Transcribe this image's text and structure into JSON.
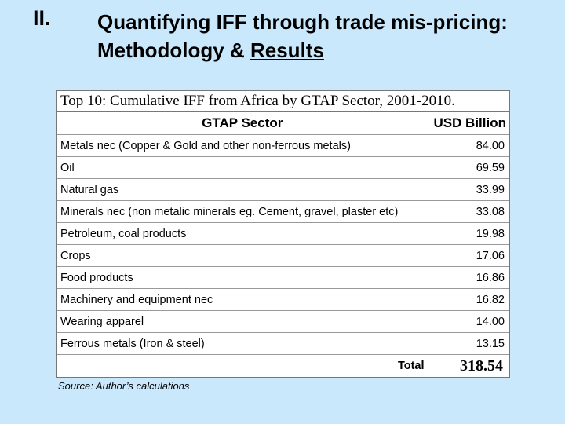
{
  "section_numeral": "II.",
  "title": {
    "main": "Quantifying IFF through trade mis-pricing: Methodology & ",
    "underlined": "Results"
  },
  "table": {
    "caption": "Top 10: Cumulative IFF from Africa by GTAP Sector, 2001-2010.",
    "col_sector": "GTAP Sector",
    "col_usd": "USD Billion",
    "rows": [
      {
        "sector": "Metals nec (Copper & Gold and other non-ferrous metals)",
        "value": "84.00"
      },
      {
        "sector": "Oil",
        "value": "69.59"
      },
      {
        "sector": "Natural gas",
        "value": "33.99"
      },
      {
        "sector": "Minerals nec (non metalic minerals eg. Cement, gravel, plaster etc)",
        "value": "33.08"
      },
      {
        "sector": "Petroleum, coal products",
        "value": "19.98"
      },
      {
        "sector": "Crops",
        "value": "17.06"
      },
      {
        "sector": "Food products",
        "value": "16.86"
      },
      {
        "sector": "Machinery and equipment nec",
        "value": "16.82"
      },
      {
        "sector": "Wearing apparel",
        "value": "14.00"
      },
      {
        "sector": "Ferrous metals (Iron & steel)",
        "value": "13.15"
      }
    ],
    "total_label": "Total",
    "total_value": "318.54"
  },
  "source": "Source: Author’s calculations",
  "colors": {
    "background": "#c9e8fb",
    "table_bg": "#ffffff"
  }
}
